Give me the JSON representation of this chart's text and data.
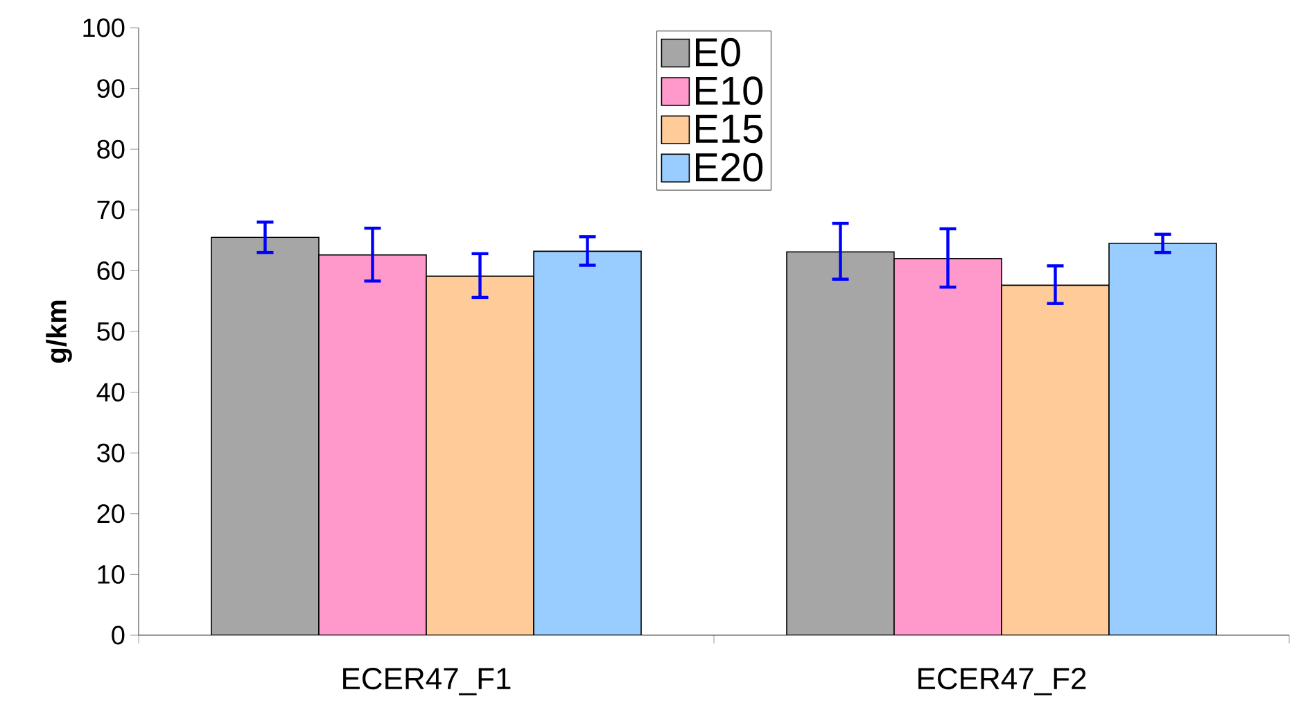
{
  "chart_data": {
    "type": "bar",
    "ylabel": "g/km",
    "categories": [
      "ECER47_F1",
      "ECER47_F2"
    ],
    "series": [
      {
        "name": "E0",
        "color": "#a6a6a6",
        "values": [
          65.5,
          63.1
        ],
        "errors": [
          [
            63.0,
            68.0
          ],
          [
            58.6,
            67.8
          ]
        ]
      },
      {
        "name": "E10",
        "color": "#ff99cc",
        "values": [
          62.6,
          62.0
        ],
        "errors": [
          [
            58.3,
            67.0
          ],
          [
            57.3,
            66.9
          ]
        ]
      },
      {
        "name": "E15",
        "color": "#ffcc99",
        "values": [
          59.1,
          57.6
        ],
        "errors": [
          [
            55.6,
            62.8
          ],
          [
            54.6,
            60.8
          ]
        ]
      },
      {
        "name": "E20",
        "color": "#99ccff",
        "values": [
          63.2,
          64.5
        ],
        "errors": [
          [
            60.9,
            65.6
          ],
          [
            63.0,
            66.0
          ]
        ]
      }
    ],
    "ylim": [
      0,
      100
    ],
    "yticks": [
      0,
      10,
      20,
      30,
      40,
      50,
      60,
      70,
      80,
      90,
      100
    ],
    "legend": "top",
    "grid": false
  }
}
